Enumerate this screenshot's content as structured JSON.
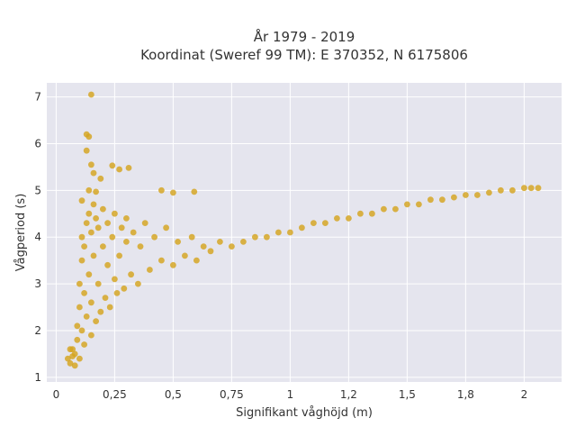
{
  "chart_data": {
    "type": "scatter",
    "title": "År 1979 - 2019",
    "subtitle": "Koordinat (Sweref 99 TM): E 370352, N 6175806",
    "xlabel": "Signifikant våghöjd (m)",
    "ylabel": "Vågperiod (s)",
    "xlim": [
      -0.04,
      2.16
    ],
    "ylim": [
      0.9,
      7.3
    ],
    "x_ticks": [
      0,
      0.25,
      0.5,
      0.75,
      1,
      1.25,
      1.5,
      1.75,
      2
    ],
    "x_tick_labels": [
      "0",
      "0,25",
      "0,5",
      "0,75",
      "1",
      "1,2",
      "1,5",
      "1,8",
      "2"
    ],
    "y_ticks": [
      1,
      2,
      3,
      4,
      5,
      6,
      7
    ],
    "y_tick_labels": [
      "1",
      "2",
      "3",
      "4",
      "5",
      "6",
      "7"
    ],
    "grid": true,
    "legend": "none",
    "colors": {
      "marker": "#d4a41f",
      "plot_background": "#e5e5ee",
      "grid": "#ffffff"
    },
    "series": [
      {
        "points": [
          [
            0.06,
            1.3
          ],
          [
            0.07,
            1.45
          ],
          [
            0.07,
            1.6
          ],
          [
            0.08,
            1.25
          ],
          [
            0.08,
            1.5
          ],
          [
            0.09,
            1.8
          ],
          [
            0.09,
            2.1
          ],
          [
            0.1,
            1.4
          ],
          [
            0.1,
            2.5
          ],
          [
            0.1,
            3.0
          ],
          [
            0.11,
            2.0
          ],
          [
            0.11,
            3.5
          ],
          [
            0.11,
            4.0
          ],
          [
            0.12,
            1.7
          ],
          [
            0.12,
            2.8
          ],
          [
            0.12,
            3.8
          ],
          [
            0.13,
            4.3
          ],
          [
            0.13,
            2.3
          ],
          [
            0.14,
            3.2
          ],
          [
            0.14,
            4.5
          ],
          [
            0.15,
            1.9
          ],
          [
            0.15,
            2.6
          ],
          [
            0.15,
            4.1
          ],
          [
            0.16,
            3.6
          ],
          [
            0.16,
            4.7
          ],
          [
            0.17,
            2.2
          ],
          [
            0.17,
            4.4
          ],
          [
            0.18,
            3.0
          ],
          [
            0.18,
            4.2
          ],
          [
            0.19,
            2.4
          ],
          [
            0.2,
            3.8
          ],
          [
            0.2,
            4.6
          ],
          [
            0.21,
            2.7
          ],
          [
            0.22,
            3.4
          ],
          [
            0.22,
            4.3
          ],
          [
            0.23,
            2.5
          ],
          [
            0.24,
            4.0
          ],
          [
            0.25,
            3.1
          ],
          [
            0.25,
            4.5
          ],
          [
            0.26,
            2.8
          ],
          [
            0.27,
            3.6
          ],
          [
            0.28,
            4.2
          ],
          [
            0.29,
            2.9
          ],
          [
            0.3,
            3.9
          ],
          [
            0.3,
            4.4
          ],
          [
            0.32,
            3.2
          ],
          [
            0.33,
            4.1
          ],
          [
            0.35,
            3.0
          ],
          [
            0.36,
            3.8
          ],
          [
            0.38,
            4.3
          ],
          [
            0.4,
            3.3
          ],
          [
            0.42,
            4.0
          ],
          [
            0.45,
            3.5
          ],
          [
            0.47,
            4.2
          ],
          [
            0.5,
            3.4
          ],
          [
            0.52,
            3.9
          ],
          [
            0.55,
            3.6
          ],
          [
            0.58,
            4.0
          ],
          [
            0.6,
            3.5
          ],
          [
            0.63,
            3.8
          ],
          [
            0.66,
            3.7
          ],
          [
            0.7,
            3.9
          ],
          [
            0.75,
            3.8
          ],
          [
            0.8,
            3.9
          ],
          [
            0.85,
            4.0
          ],
          [
            0.9,
            4.0
          ],
          [
            0.95,
            4.1
          ],
          [
            1.0,
            4.1
          ],
          [
            1.05,
            4.2
          ],
          [
            1.1,
            4.3
          ],
          [
            1.15,
            4.3
          ],
          [
            1.2,
            4.4
          ],
          [
            1.25,
            4.4
          ],
          [
            1.3,
            4.5
          ],
          [
            1.35,
            4.5
          ],
          [
            1.4,
            4.6
          ],
          [
            1.45,
            4.6
          ],
          [
            1.5,
            4.7
          ],
          [
            1.55,
            4.7
          ],
          [
            1.6,
            4.8
          ],
          [
            1.65,
            4.8
          ],
          [
            1.7,
            4.85
          ],
          [
            1.75,
            4.9
          ],
          [
            1.8,
            4.9
          ],
          [
            1.85,
            4.95
          ],
          [
            1.9,
            5.0
          ],
          [
            1.95,
            5.0
          ],
          [
            2.0,
            5.05
          ],
          [
            2.03,
            5.05
          ],
          [
            2.06,
            5.05
          ],
          [
            0.15,
            7.05
          ],
          [
            0.13,
            6.2
          ],
          [
            0.14,
            6.15
          ],
          [
            0.13,
            5.85
          ],
          [
            0.15,
            5.55
          ],
          [
            0.16,
            5.37
          ],
          [
            0.24,
            5.53
          ],
          [
            0.27,
            5.45
          ],
          [
            0.31,
            5.48
          ],
          [
            0.19,
            5.25
          ],
          [
            0.45,
            5.0
          ],
          [
            0.5,
            4.95
          ],
          [
            0.59,
            4.97
          ],
          [
            0.17,
            4.97
          ],
          [
            0.14,
            5.0
          ],
          [
            0.11,
            4.78
          ],
          [
            0.05,
            1.4
          ],
          [
            0.06,
            1.6
          ]
        ]
      }
    ]
  }
}
